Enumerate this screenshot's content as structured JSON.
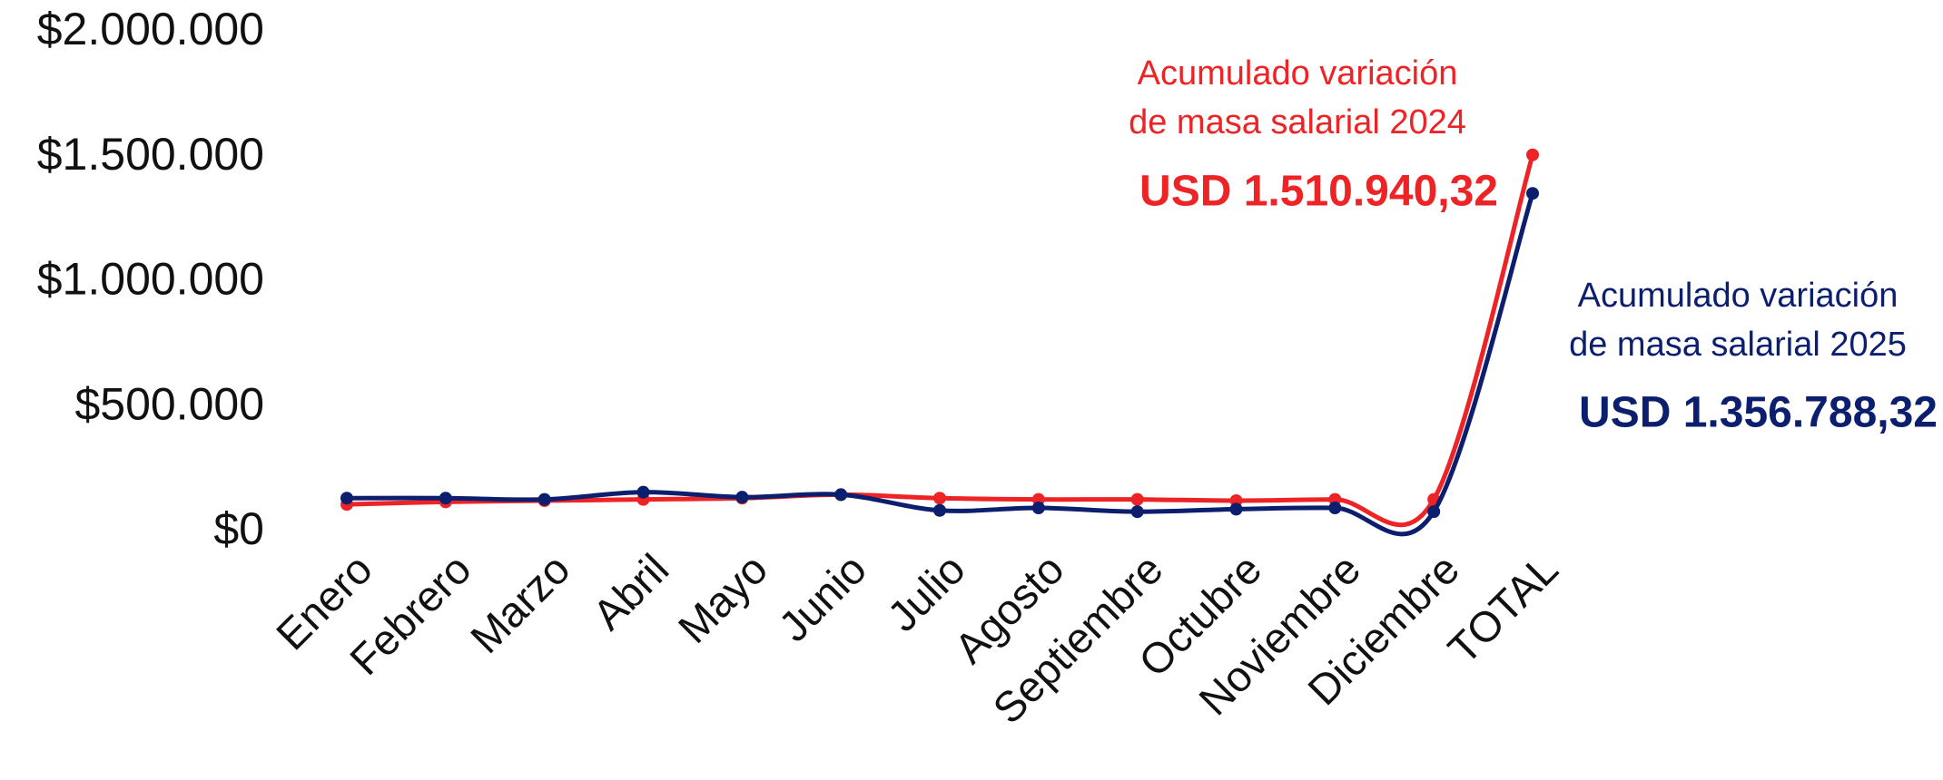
{
  "chart_data": {
    "type": "line",
    "categories": [
      "Enero",
      "Febrero",
      "Marzo",
      "Abril",
      "Mayo",
      "Junio",
      "Julio",
      "Agosto",
      "Septiembre",
      "Octubre",
      "Noviembre",
      "Diciembre",
      "TOTAL"
    ],
    "series": [
      {
        "name": "Acumulado variación de masa salarial 2024",
        "color": "#ee2326",
        "values": [
          112000,
          122000,
          127000,
          132000,
          137000,
          151000,
          137000,
          132000,
          132000,
          127000,
          132000,
          132000,
          1510940.32
        ],
        "value_labels": [
          null,
          null,
          null,
          null,
          null,
          null,
          null,
          null,
          null,
          null,
          null,
          null,
          "USD 1.510.940,32"
        ],
        "label_lines": [
          "Acumulado variación",
          "de masa salarial 2024"
        ]
      },
      {
        "name": "Acumulado variación de masa salarial 2025",
        "color": "#0c1f6f",
        "values": [
          137000,
          137000,
          132000,
          161000,
          141000,
          151000,
          88000,
          98000,
          83000,
          93000,
          98000,
          83000,
          1356788.32
        ],
        "value_labels": [
          null,
          null,
          null,
          null,
          null,
          null,
          null,
          null,
          null,
          null,
          null,
          null,
          "USD 1.356.788,32"
        ],
        "label_lines": [
          "Acumulado variación",
          "de masa salarial 2025"
        ]
      }
    ],
    "ylim": [
      0,
      2000000
    ],
    "yticks": [
      {
        "value": 0,
        "label": "$0"
      },
      {
        "value": 500000,
        "label": "$500.000"
      },
      {
        "value": 1000000,
        "label": "$1.000.000"
      },
      {
        "value": 1500000,
        "label": "$1.500.000"
      },
      {
        "value": 2000000,
        "label": "$2.000.000"
      }
    ],
    "grid": false,
    "smooth": true
  }
}
